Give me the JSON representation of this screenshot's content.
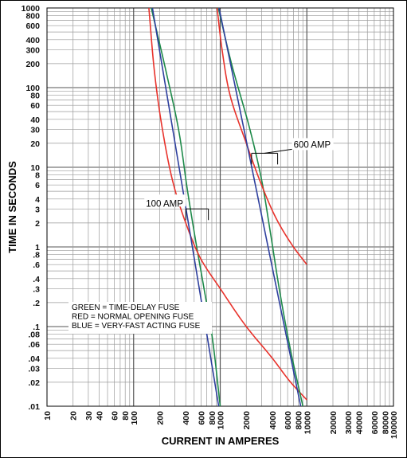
{
  "chart_data": {
    "type": "line",
    "x_scale": "log",
    "y_scale": "log",
    "xlim": [
      10,
      100000
    ],
    "ylim": [
      0.01,
      1000
    ],
    "grid": true,
    "xlabel": "CURRENT IN AMPERES",
    "ylabel": "TIME IN SECONDS",
    "x_tick_labels": [
      "10",
      "20",
      "30",
      "40",
      "60",
      "80",
      "100",
      "200",
      "400",
      "600",
      "800",
      "1000",
      "2000",
      "4000",
      "6000",
      "8000",
      "10000",
      "20000",
      "30000",
      "40000",
      "60000",
      "80000",
      "100000"
    ],
    "x_tick_values": [
      10,
      20,
      30,
      40,
      60,
      80,
      100,
      200,
      400,
      600,
      800,
      1000,
      2000,
      4000,
      6000,
      8000,
      10000,
      20000,
      30000,
      40000,
      60000,
      80000,
      100000
    ],
    "y_tick_labels": [
      "1000",
      "800",
      "600",
      "400",
      "300",
      "200",
      "100",
      "80",
      "60",
      "40",
      "30",
      "20",
      "10",
      "8",
      "6",
      "4",
      "3",
      "2",
      "1",
      ".8",
      ".6",
      ".4",
      ".3",
      ".2",
      ".1",
      ".08",
      ".06",
      ".04",
      ".03",
      ".02",
      ".01"
    ],
    "y_tick_values": [
      1000,
      800,
      600,
      400,
      300,
      200,
      100,
      80,
      60,
      40,
      30,
      20,
      10,
      8,
      6,
      4,
      3,
      2,
      1,
      0.8,
      0.6,
      0.4,
      0.3,
      0.2,
      0.1,
      0.08,
      0.06,
      0.04,
      0.03,
      0.02,
      0.01
    ],
    "colors": {
      "green": "#1e8a4a",
      "red": "#e8322b",
      "blue": "#2e3f9e"
    },
    "series": [
      {
        "color_key": "green",
        "group": "100A",
        "points": [
          [
            160,
            1000
          ],
          [
            240,
            150
          ],
          [
            330,
            30
          ],
          [
            420,
            5
          ],
          [
            520,
            1.2
          ],
          [
            650,
            0.3
          ],
          [
            800,
            0.08
          ],
          [
            1000,
            0.01
          ]
        ]
      },
      {
        "color_key": "red",
        "group": "100A",
        "points": [
          [
            150,
            1000
          ],
          [
            175,
            150
          ],
          [
            215,
            30
          ],
          [
            290,
            6
          ],
          [
            400,
            2
          ],
          [
            600,
            0.7
          ],
          [
            1000,
            0.3
          ],
          [
            2000,
            0.1
          ],
          [
            4000,
            0.04
          ],
          [
            6500,
            0.02
          ],
          [
            10000,
            0.012
          ]
        ]
      },
      {
        "color_key": "blue",
        "group": "100A",
        "points": [
          [
            165,
            1000
          ],
          [
            530,
            0.5
          ],
          [
            960,
            0.01
          ]
        ]
      },
      {
        "color_key": "green",
        "group": "600A",
        "points": [
          [
            950,
            1000
          ],
          [
            1350,
            200
          ],
          [
            2200,
            30
          ],
          [
            3000,
            7
          ],
          [
            3800,
            1.5
          ],
          [
            4800,
            0.3
          ],
          [
            6500,
            0.05
          ],
          [
            9000,
            0.01
          ]
        ]
      },
      {
        "color_key": "red",
        "group": "600A",
        "points": [
          [
            920,
            1000
          ],
          [
            1050,
            300
          ],
          [
            1300,
            80
          ],
          [
            2000,
            20
          ],
          [
            3000,
            6
          ],
          [
            4500,
            2.2
          ],
          [
            7000,
            1
          ],
          [
            10000,
            0.6
          ]
        ]
      },
      {
        "color_key": "blue",
        "group": "600A",
        "points": [
          [
            970,
            1000
          ],
          [
            8500,
            0.01
          ]
        ]
      }
    ],
    "legend": [
      "GREEN = TIME-DELAY FUSE",
      "RED    = NORMAL OPENING FUSE",
      "BLUE = VERY-FAST ACTING FUSE"
    ],
    "legend_position": "bottom-left",
    "annotations": [
      {
        "text": "100 AMP",
        "bracket_x": [
          400,
          730
        ],
        "bracket_y": 3
      },
      {
        "text": "600 AMP",
        "bracket_x": [
          2300,
          4600
        ],
        "bracket_y": 15
      }
    ]
  }
}
